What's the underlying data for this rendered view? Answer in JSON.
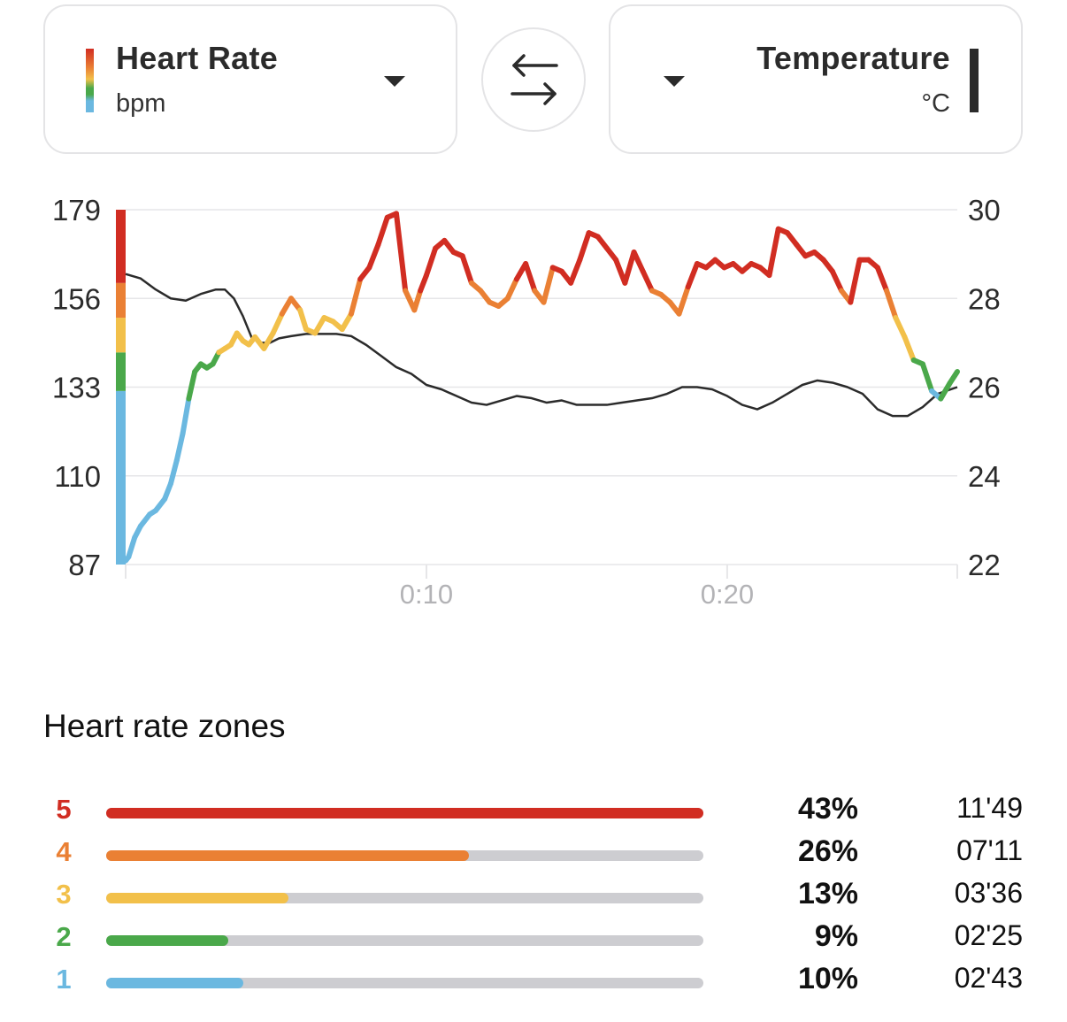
{
  "left_metric": {
    "title": "Heart Rate",
    "unit": "bpm",
    "dropdown_icon": "caret-down-icon"
  },
  "swap_button": {
    "icon": "swap-arrows-icon"
  },
  "right_metric": {
    "title": "Temperature",
    "unit": "°C",
    "dropdown_icon": "caret-down-icon"
  },
  "colors": {
    "zone5": "#d12d22",
    "zone4": "#ea8034",
    "zone3": "#f2c04a",
    "zone2": "#4aa84a",
    "zone1": "#6bb8e0",
    "temperature_line": "#2b2b2b",
    "grid": "#e6e6e8",
    "track": "#cdcdd1"
  },
  "chart_data": {
    "type": "line",
    "title": "",
    "xlabel": "",
    "ylabel": "Heart Rate (bpm)",
    "y2label": "Temperature (°C)",
    "x_unit": "minutes",
    "xlim": [
      0,
      27.65
    ],
    "ylim": [
      87,
      179
    ],
    "y2lim": [
      22,
      30
    ],
    "x_ticks": [
      {
        "value": 10,
        "label": "0:10"
      },
      {
        "value": 20,
        "label": "0:20"
      }
    ],
    "y_ticks": [
      "179",
      "156",
      "133",
      "110",
      "87"
    ],
    "y_tick_values": [
      179,
      156,
      133,
      110,
      87
    ],
    "y2_ticks": [
      "30",
      "28",
      "26",
      "24",
      "22"
    ],
    "y2_tick_values": [
      30,
      28,
      26,
      24,
      22
    ],
    "grid": true,
    "zone_thresholds_bpm": [
      132,
      142,
      151,
      160
    ],
    "series": [
      {
        "name": "Heart Rate",
        "axis": "left",
        "x": [
          0,
          0.1,
          0.3,
          0.5,
          0.8,
          1.0,
          1.3,
          1.5,
          1.7,
          1.9,
          2.1,
          2.3,
          2.5,
          2.7,
          2.9,
          3.1,
          3.3,
          3.5,
          3.7,
          3.9,
          4.1,
          4.3,
          4.6,
          4.9,
          5.2,
          5.5,
          5.8,
          6.0,
          6.3,
          6.6,
          6.9,
          7.2,
          7.5,
          7.8,
          8.1,
          8.4,
          8.7,
          9.0,
          9.3,
          9.6,
          9.8,
          10.0,
          10.3,
          10.6,
          10.9,
          11.2,
          11.5,
          11.8,
          12.1,
          12.4,
          12.7,
          13.0,
          13.3,
          13.6,
          13.9,
          14.2,
          14.5,
          14.8,
          15.1,
          15.4,
          15.7,
          16.0,
          16.3,
          16.6,
          16.9,
          17.2,
          17.5,
          17.8,
          18.1,
          18.4,
          18.7,
          19.0,
          19.3,
          19.6,
          19.9,
          20.2,
          20.5,
          20.8,
          21.1,
          21.4,
          21.7,
          22.0,
          22.3,
          22.6,
          22.9,
          23.2,
          23.5,
          23.8,
          24.1,
          24.4,
          24.7,
          25.0,
          25.3,
          25.6,
          25.9,
          26.2,
          26.5,
          26.8,
          27.1,
          27.4,
          27.65
        ],
        "values": [
          88,
          89,
          94,
          97,
          100,
          101,
          104,
          108,
          114,
          121,
          130,
          137,
          139,
          138,
          139,
          142,
          143,
          144,
          147,
          145,
          144,
          146,
          143,
          147,
          152,
          156,
          153,
          148,
          147,
          151,
          150,
          148,
          152,
          161,
          164,
          170,
          177,
          178,
          158,
          153,
          158,
          162,
          169,
          171,
          168,
          167,
          160,
          158,
          155,
          154,
          156,
          161,
          165,
          158,
          155,
          164,
          163,
          160,
          166,
          173,
          172,
          169,
          166,
          160,
          168,
          163,
          158,
          157,
          155,
          152,
          159,
          165,
          164,
          166,
          164,
          165,
          163,
          165,
          164,
          162,
          174,
          173,
          170,
          167,
          168,
          166,
          163,
          158,
          155,
          166,
          166,
          164,
          158,
          151,
          146,
          140,
          139,
          132,
          130,
          134,
          137
        ]
      },
      {
        "name": "Temperature",
        "axis": "right",
        "x": [
          0,
          0.5,
          1.0,
          1.5,
          2.0,
          2.5,
          3.0,
          3.3,
          3.6,
          3.9,
          4.2,
          4.5,
          4.8,
          5.1,
          5.5,
          6.0,
          6.5,
          7.0,
          7.5,
          8.0,
          8.5,
          9.0,
          9.5,
          10.0,
          10.5,
          11.0,
          11.5,
          12.0,
          12.5,
          13.0,
          13.5,
          14.0,
          14.5,
          15.0,
          15.5,
          16.0,
          16.5,
          17.0,
          17.5,
          18.0,
          18.5,
          19.0,
          19.5,
          20.0,
          20.5,
          21.0,
          21.5,
          22.0,
          22.5,
          23.0,
          23.5,
          24.0,
          24.5,
          25.0,
          25.5,
          26.0,
          26.5,
          27.0,
          27.65
        ],
        "values": [
          28.55,
          28.45,
          28.2,
          28.0,
          27.95,
          28.1,
          28.2,
          28.2,
          28.0,
          27.6,
          27.1,
          27.0,
          27.0,
          27.1,
          27.15,
          27.2,
          27.2,
          27.2,
          27.15,
          26.95,
          26.7,
          26.45,
          26.3,
          26.05,
          25.95,
          25.8,
          25.65,
          25.6,
          25.7,
          25.8,
          25.75,
          25.65,
          25.7,
          25.6,
          25.6,
          25.6,
          25.65,
          25.7,
          25.75,
          25.85,
          26.0,
          26.0,
          25.95,
          25.8,
          25.6,
          25.5,
          25.65,
          25.85,
          26.05,
          26.15,
          26.1,
          26.0,
          25.85,
          25.5,
          25.35,
          25.35,
          25.55,
          25.85,
          26.0
        ]
      }
    ]
  },
  "zones": {
    "title": "Heart rate zones",
    "items": [
      {
        "zone": "5",
        "percent": "43%",
        "fraction": 1.0,
        "time": "11'49",
        "color": "#d12d22"
      },
      {
        "zone": "4",
        "percent": "26%",
        "fraction": 0.608,
        "time": "07'11",
        "color": "#ea8034"
      },
      {
        "zone": "3",
        "percent": "13%",
        "fraction": 0.305,
        "time": "03'36",
        "color": "#f2c04a"
      },
      {
        "zone": "2",
        "percent": "9%",
        "fraction": 0.205,
        "time": "02'25",
        "color": "#4aa84a"
      },
      {
        "zone": "1",
        "percent": "10%",
        "fraction": 0.23,
        "time": "02'43",
        "color": "#6bb8e0"
      }
    ]
  }
}
